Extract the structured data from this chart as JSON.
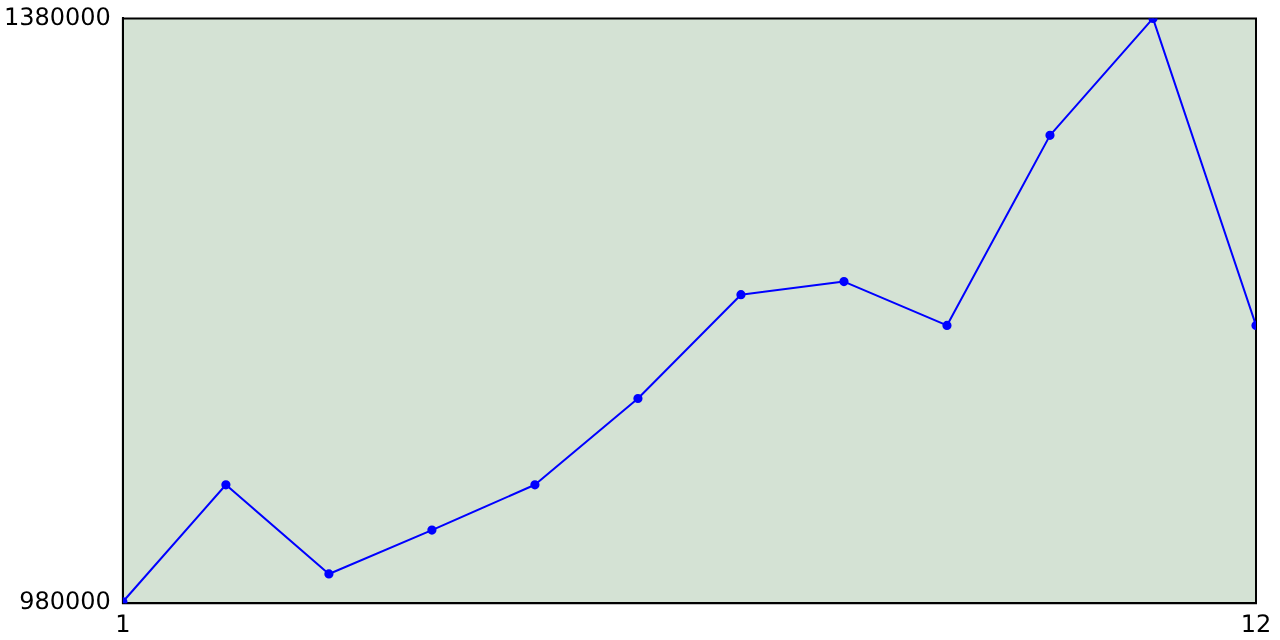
{
  "chart_data": {
    "type": "line",
    "x": [
      1,
      2,
      3,
      4,
      5,
      6,
      7,
      8,
      9,
      10,
      11,
      12
    ],
    "series": [
      {
        "color": "#0000ff",
        "values": [
          981000,
          1061000,
          1000000,
          1030000,
          1061000,
          1120000,
          1191000,
          1200000,
          1170000,
          1300000,
          1380000,
          1170000
        ]
      }
    ],
    "xlim": [
      1,
      12
    ],
    "xticks": [
      1,
      12
    ],
    "ylim": [
      980000,
      1380000
    ],
    "yticks": [
      980000,
      1380000
    ],
    "grid": false,
    "legend": false,
    "marker": "circle",
    "line_style": "solid"
  }
}
